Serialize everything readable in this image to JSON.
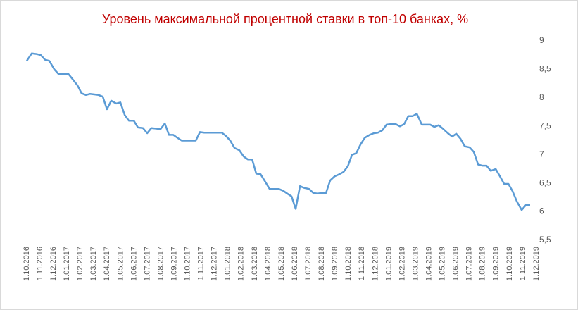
{
  "chart_data": {
    "type": "line",
    "title": "Уровень максимальной процентной  ставки в топ-10 банках, %",
    "x": [
      0,
      0.37,
      0.73,
      1.05,
      1.36,
      1.68,
      2.05,
      2.36,
      2.73,
      3.1,
      3.41,
      3.78,
      4.09,
      4.41,
      4.72,
      5.04,
      5.35,
      5.67,
      5.98,
      6.3,
      6.67,
      6.98,
      7.3,
      7.61,
      7.98,
      8.29,
      8.66,
      8.98,
      9.29,
      9.66,
      9.97,
      10.29,
      10.6,
      10.92,
      11.23,
      11.55,
      11.92,
      12.23,
      12.6,
      12.91,
      13.23,
      13.6,
      13.91,
      14.23,
      14.54,
      14.86,
      15.17,
      15.49,
      15.85,
      16.17,
      16.48,
      16.8,
      17.11,
      17.43,
      17.8,
      18.11,
      18.43,
      18.79,
      19.11,
      19.42,
      19.74,
      20.05,
      20.37,
      20.68,
      21.05,
      21.36,
      21.68,
      21.99,
      22.31,
      22.62,
      22.94,
      23.31,
      23.62,
      23.94,
      24.25,
      24.57,
      24.88,
      25.2,
      25.56,
      25.88,
      26.19,
      26.51,
      26.82,
      27.14,
      27.51,
      27.82,
      28.14,
      28.45,
      28.77,
      29.08,
      29.45,
      29.76,
      30.08,
      30.39,
      30.71,
      31.02,
      31.39,
      31.71,
      32.02,
      32.34,
      32.65,
      33.02,
      33.33,
      33.65,
      33.96,
      34.28,
      34.59,
      34.96,
      35.28,
      35.59,
      35.91,
      36.22,
      36.54,
      36.9,
      37.22,
      37.53
    ],
    "series": [
      {
        "name": "Уровень максимальной процентной ставки",
        "color": "#5b9bd5",
        "values": [
          8.65,
          8.78,
          8.77,
          8.75,
          8.67,
          8.65,
          8.5,
          8.42,
          8.42,
          8.42,
          8.33,
          8.22,
          8.08,
          8.05,
          8.07,
          8.06,
          8.05,
          8.02,
          7.8,
          7.95,
          7.9,
          7.92,
          7.7,
          7.6,
          7.6,
          7.48,
          7.47,
          7.38,
          7.47,
          7.46,
          7.45,
          7.55,
          7.35,
          7.35,
          7.3,
          7.25,
          7.25,
          7.25,
          7.25,
          7.4,
          7.39,
          7.39,
          7.39,
          7.39,
          7.39,
          7.33,
          7.25,
          7.12,
          7.08,
          6.97,
          6.92,
          6.92,
          6.67,
          6.66,
          6.52,
          6.4,
          6.4,
          6.4,
          6.37,
          6.32,
          6.27,
          6.05,
          6.45,
          6.42,
          6.4,
          6.33,
          6.32,
          6.33,
          6.33,
          6.55,
          6.62,
          6.66,
          6.7,
          6.8,
          7.0,
          7.03,
          7.18,
          7.3,
          7.35,
          7.38,
          7.39,
          7.43,
          7.53,
          7.54,
          7.54,
          7.5,
          7.54,
          7.68,
          7.68,
          7.72,
          7.53,
          7.53,
          7.53,
          7.49,
          7.52,
          7.46,
          7.38,
          7.32,
          7.37,
          7.28,
          7.15,
          7.13,
          7.05,
          6.83,
          6.81,
          6.81,
          6.72,
          6.75,
          6.62,
          6.49,
          6.49,
          6.36,
          6.18,
          6.03,
          6.12,
          6.12
        ]
      }
    ],
    "xlim": [
      0,
      38
    ],
    "xticks": [
      {
        "value": 0,
        "label": "1.10.2016"
      },
      {
        "value": 1,
        "label": "1.11.2016"
      },
      {
        "value": 2,
        "label": "1.12.2016"
      },
      {
        "value": 3,
        "label": "1.01.2017"
      },
      {
        "value": 4,
        "label": "1.02.2017"
      },
      {
        "value": 5,
        "label": "1.03.2017"
      },
      {
        "value": 6,
        "label": "1.04.2017"
      },
      {
        "value": 7,
        "label": "1.05.2017"
      },
      {
        "value": 8,
        "label": "1.06.2017"
      },
      {
        "value": 9,
        "label": "1.07.2017"
      },
      {
        "value": 10,
        "label": "1.08.2017"
      },
      {
        "value": 11,
        "label": "1.09.2017"
      },
      {
        "value": 12,
        "label": "1.10.2017"
      },
      {
        "value": 13,
        "label": "1.11.2017"
      },
      {
        "value": 14,
        "label": "1.12.2017"
      },
      {
        "value": 15,
        "label": "1.01.2018"
      },
      {
        "value": 16,
        "label": "1.02.2018"
      },
      {
        "value": 17,
        "label": "1.03.2018"
      },
      {
        "value": 18,
        "label": "1.04.2018"
      },
      {
        "value": 19,
        "label": "1.05.2018"
      },
      {
        "value": 20,
        "label": "1.06.2018"
      },
      {
        "value": 21,
        "label": "1.07.2018"
      },
      {
        "value": 22,
        "label": "1.08.2018"
      },
      {
        "value": 23,
        "label": "1.09.2018"
      },
      {
        "value": 24,
        "label": "1.10.2018"
      },
      {
        "value": 25,
        "label": "1.11.2018"
      },
      {
        "value": 26,
        "label": "1.12.2018"
      },
      {
        "value": 27,
        "label": "1.01.2019"
      },
      {
        "value": 28,
        "label": "1.02.2019"
      },
      {
        "value": 29,
        "label": "1.03.2019"
      },
      {
        "value": 30,
        "label": "1.04.2019"
      },
      {
        "value": 31,
        "label": "1.05.2019"
      },
      {
        "value": 32,
        "label": "1.06.2019"
      },
      {
        "value": 33,
        "label": "1.07.2019"
      },
      {
        "value": 34,
        "label": "1.08.2019"
      },
      {
        "value": 35,
        "label": "1.09.2019"
      },
      {
        "value": 36,
        "label": "1.10.2019"
      },
      {
        "value": 37,
        "label": "1.11.2019"
      },
      {
        "value": 38,
        "label": "1.12.2019"
      }
    ],
    "ylim": [
      5.5,
      9
    ],
    "yticks": [
      9,
      {
        "value": 8.5,
        "label": "8,5"
      },
      8,
      {
        "value": 7.5,
        "label": "7,5"
      },
      7,
      {
        "value": 6.5,
        "label": "6,5"
      },
      6,
      {
        "value": 5.5,
        "label": "5,5"
      }
    ],
    "yaxis_side": "right",
    "grid": false
  }
}
